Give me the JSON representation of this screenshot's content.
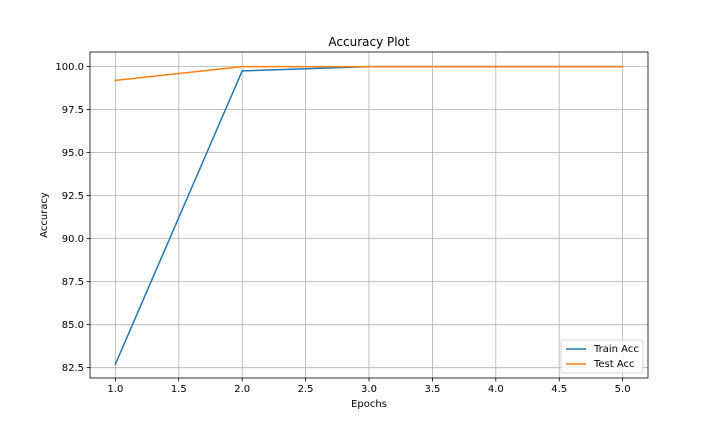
{
  "chart_data": {
    "type": "line",
    "title": "Accuracy Plot",
    "xlabel": "Epochs",
    "ylabel": "Accuracy",
    "x": [
      1,
      2,
      3,
      4,
      5
    ],
    "xlim": [
      0.8,
      5.2
    ],
    "ylim": [
      81.9,
      100.85
    ],
    "xticks": [
      1.0,
      1.5,
      2.0,
      2.5,
      3.0,
      3.5,
      4.0,
      4.5,
      5.0
    ],
    "yticks": [
      82.5,
      85.0,
      87.5,
      90.0,
      92.5,
      95.0,
      97.5,
      100.0
    ],
    "xtick_labels": [
      "1.0",
      "1.5",
      "2.0",
      "2.5",
      "3.0",
      "3.5",
      "4.0",
      "4.5",
      "5.0"
    ],
    "ytick_labels": [
      "82.5",
      "85.0",
      "87.5",
      "90.0",
      "92.5",
      "95.0",
      "97.5",
      "100.0"
    ],
    "grid": true,
    "legend_position": "lower-right",
    "series": [
      {
        "name": "Train Acc",
        "color": "#1f77b4",
        "values": [
          82.7,
          99.75,
          100.0,
          100.0,
          100.0
        ]
      },
      {
        "name": "Test Acc",
        "color": "#ff7f0e",
        "values": [
          99.2,
          100.0,
          100.0,
          100.0,
          100.0
        ]
      }
    ]
  }
}
